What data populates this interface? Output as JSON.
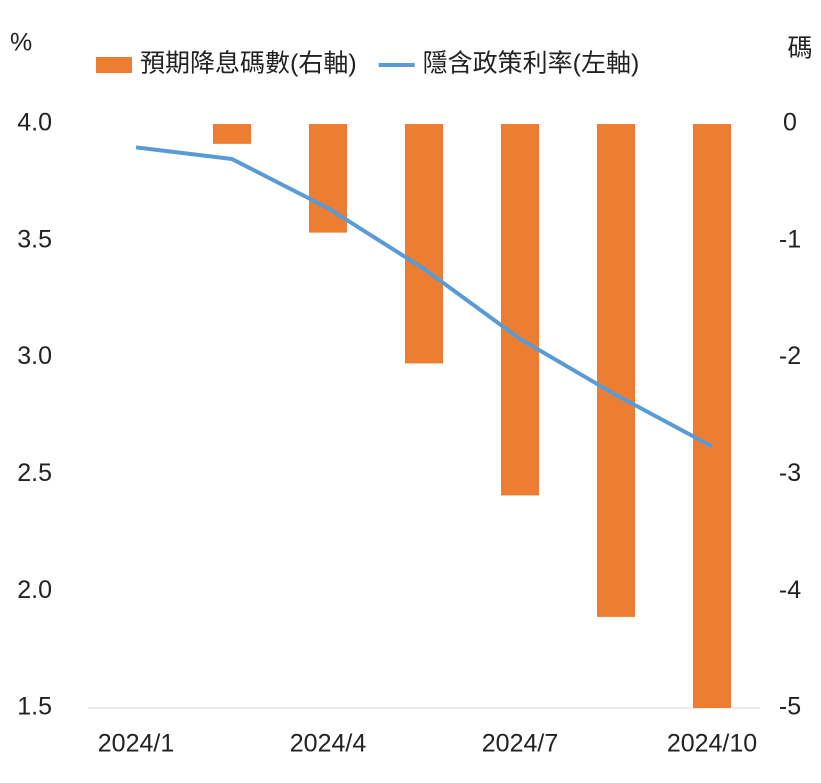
{
  "chart_data": {
    "type": "bar_line",
    "ylabel": "%",
    "y2label": "碼",
    "categories": [
      "2024/1",
      null,
      "2024/4",
      null,
      "2024/7",
      null,
      "2024/10"
    ],
    "series": [
      {
        "name": "預期降息碼數(右軸)",
        "type": "bar",
        "axis": "y2",
        "color": "#ed7d31",
        "values": [
          null,
          -0.17,
          -0.93,
          -2.05,
          -3.18,
          -4.22,
          -5.0
        ]
      },
      {
        "name": "隱含政策利率(左軸)",
        "type": "line",
        "color": "#5b9bd5",
        "values": [
          3.9,
          3.85,
          3.64,
          3.38,
          3.08,
          2.84,
          2.62
        ]
      }
    ],
    "ylim": [
      1.5,
      4.0
    ],
    "yticks": [
      1.5,
      {
        "value": 2,
        "label": "2.0"
      },
      2.5,
      {
        "value": 3,
        "label": "3.0"
      },
      3.5,
      {
        "value": 4,
        "label": "4.0"
      }
    ],
    "y2lim": [
      -5,
      0
    ],
    "y2ticks": [
      -5,
      -4,
      -3,
      -2,
      -1,
      0
    ],
    "legend": "top"
  }
}
